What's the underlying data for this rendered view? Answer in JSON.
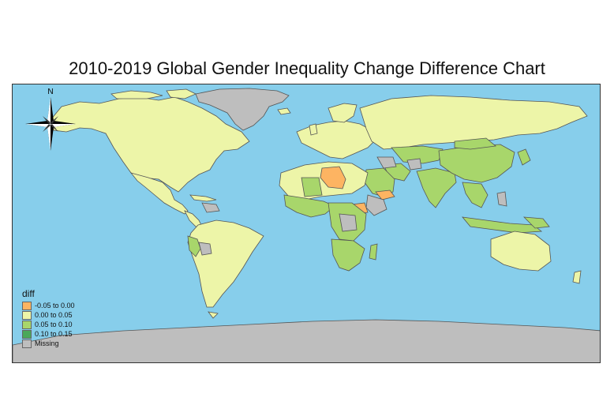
{
  "title": "2010-2019 Global Gender Inequality Change Difference Chart",
  "colors": {
    "ocean": "#87ceeb",
    "border": "#555555",
    "neg_0_05_to_0": "#fdb462",
    "0_to_0_05": "#edf5a8",
    "0_05_to_0_10": "#a8d66b",
    "0_10_to_0_15": "#4aa85a",
    "missing": "#bebebe"
  },
  "compass": {
    "north_label": "N",
    "icon": "compass-rose-icon"
  },
  "legend": {
    "title": "diff",
    "items": [
      {
        "label": "-0.05 to 0.00",
        "color": "#fdb462"
      },
      {
        "label": "0.00 to 0.05",
        "color": "#edf5a8"
      },
      {
        "label": "0.05 to 0.10",
        "color": "#a8d66b"
      },
      {
        "label": "0.10 to 0.15",
        "color": "#4aa85a"
      },
      {
        "label": "Missing",
        "color": "#bebebe"
      }
    ]
  }
}
